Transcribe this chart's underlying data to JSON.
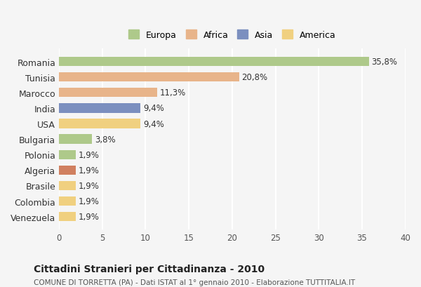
{
  "categories": [
    "Romania",
    "Tunisia",
    "Marocco",
    "India",
    "USA",
    "Bulgaria",
    "Polonia",
    "Algeria",
    "Brasile",
    "Colombia",
    "Venezuela"
  ],
  "values": [
    35.8,
    20.8,
    11.3,
    9.4,
    9.4,
    3.8,
    1.9,
    1.9,
    1.9,
    1.9,
    1.9
  ],
  "labels": [
    "35,8%",
    "20,8%",
    "11,3%",
    "9,4%",
    "9,4%",
    "3,8%",
    "1,9%",
    "1,9%",
    "1,9%",
    "1,9%",
    "1,9%"
  ],
  "colors": [
    "#aec98a",
    "#e8b48a",
    "#e8b48a",
    "#7b8fbf",
    "#f0d080",
    "#aec98a",
    "#aec98a",
    "#d08060",
    "#f0d080",
    "#f0d080",
    "#f0d080"
  ],
  "legend": {
    "Europa": "#aec98a",
    "Africa": "#e8b48a",
    "Asia": "#7b8fbf",
    "America": "#f0d080"
  },
  "xlim": [
    0,
    40
  ],
  "xticks": [
    0,
    5,
    10,
    15,
    20,
    25,
    30,
    35,
    40
  ],
  "title": "Cittadini Stranieri per Cittadinanza - 2010",
  "subtitle": "COMUNE DI TORRETTA (PA) - Dati ISTAT al 1° gennaio 2010 - Elaborazione TUTTITALIA.IT",
  "background_color": "#f5f5f5",
  "grid_color": "#ffffff",
  "bar_height": 0.6
}
